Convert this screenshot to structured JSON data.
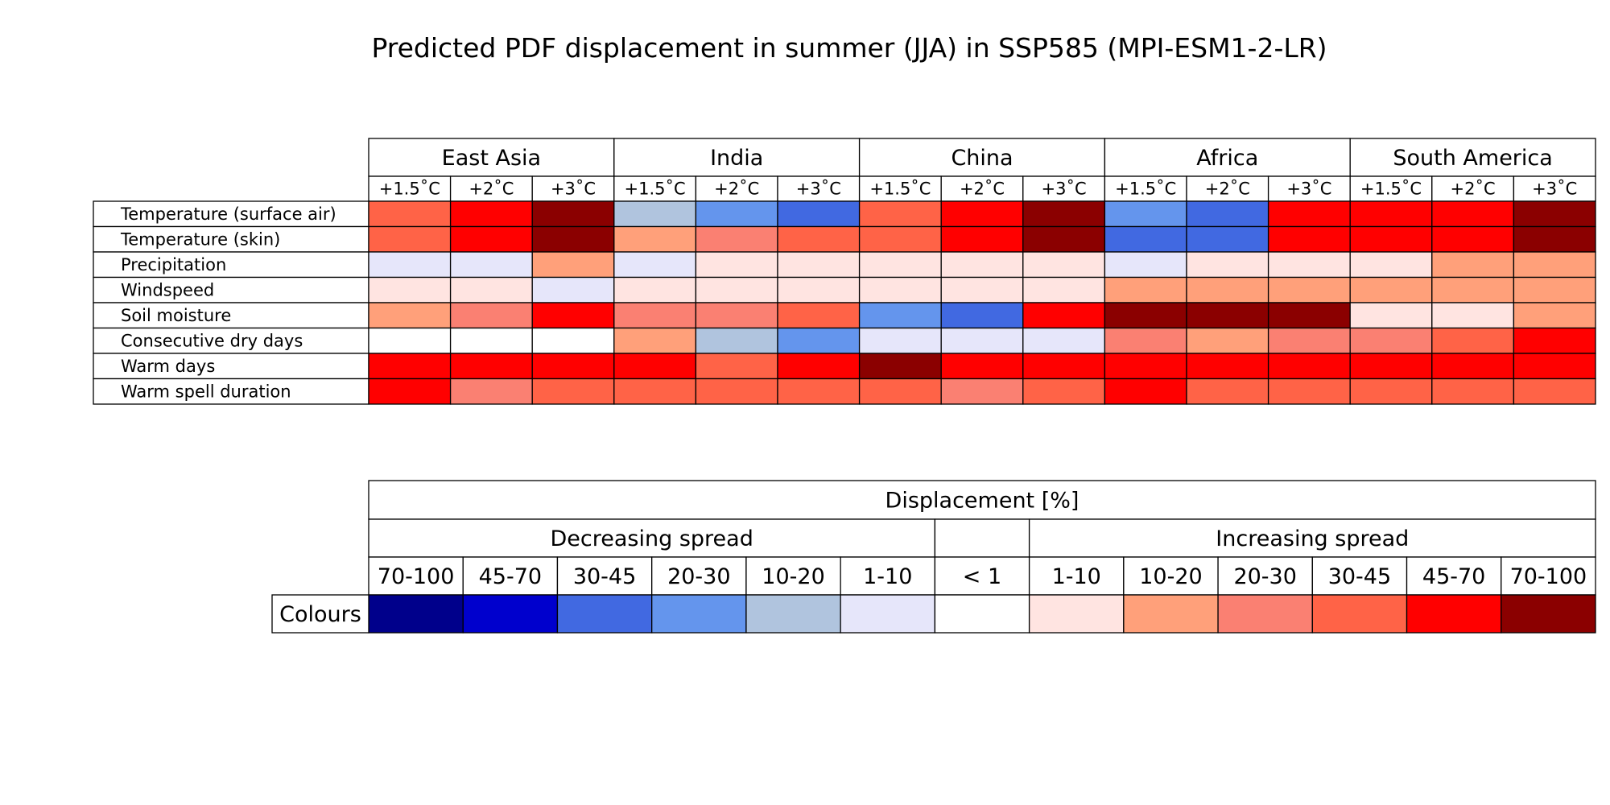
{
  "chart_data": {
    "type": "heatmap",
    "title": "Predicted PDF displacement in summer (JJA) in SSP585 (MPI-ESM1-2-LR)",
    "regions": [
      "East Asia",
      "India",
      "China",
      "Africa",
      "South America"
    ],
    "warming_levels": [
      "+1.5˚C",
      "+2˚C",
      "+3˚C"
    ],
    "variables": [
      "Temperature (surface air)",
      "Temperature (skin)",
      "Precipitation",
      "Windspeed",
      "Soil moisture",
      "Consecutive dry days",
      "Warm days",
      "Warm spell duration"
    ],
    "cells": [
      [
        "#ff6347",
        "#ff0000",
        "#8b0000",
        "#b0c4de",
        "#6495ed",
        "#4169e1",
        "#ff6347",
        "#ff0000",
        "#8b0000",
        "#6495ed",
        "#4169e1",
        "#ff0000",
        "#ff0000",
        "#ff0000",
        "#8b0000"
      ],
      [
        "#ff6347",
        "#ff0000",
        "#8b0000",
        "#ffa07a",
        "#fa8072",
        "#ff6347",
        "#ff6347",
        "#ff0000",
        "#8b0000",
        "#4169e1",
        "#4169e1",
        "#ff0000",
        "#ff0000",
        "#ff0000",
        "#8b0000"
      ],
      [
        "#e6e6fa",
        "#e6e6fa",
        "#ffa07a",
        "#e6e6fa",
        "#ffe4e1",
        "#ffe4e1",
        "#ffe4e1",
        "#ffe4e1",
        "#ffe4e1",
        "#e6e6fa",
        "#ffe4e1",
        "#ffe4e1",
        "#ffe4e1",
        "#ffa07a",
        "#ffa07a"
      ],
      [
        "#ffe4e1",
        "#ffe4e1",
        "#e6e6fa",
        "#ffe4e1",
        "#ffe4e1",
        "#ffe4e1",
        "#ffe4e1",
        "#ffe4e1",
        "#ffe4e1",
        "#ffa07a",
        "#ffa07a",
        "#ffa07a",
        "#ffa07a",
        "#ffa07a",
        "#ffa07a"
      ],
      [
        "#ffa07a",
        "#fa8072",
        "#ff0000",
        "#fa8072",
        "#fa8072",
        "#ff6347",
        "#6495ed",
        "#4169e1",
        "#ff0000",
        "#8b0000",
        "#8b0000",
        "#8b0000",
        "#ffe4e1",
        "#ffe4e1",
        "#ffa07a"
      ],
      [
        "#ffffff",
        "#ffffff",
        "#ffffff",
        "#ffa07a",
        "#b0c4de",
        "#6495ed",
        "#e6e6fa",
        "#e6e6fa",
        "#e6e6fa",
        "#fa8072",
        "#ffa07a",
        "#fa8072",
        "#fa8072",
        "#ff6347",
        "#ff0000"
      ],
      [
        "#ff0000",
        "#ff0000",
        "#ff0000",
        "#ff0000",
        "#ff6347",
        "#ff0000",
        "#8b0000",
        "#ff0000",
        "#ff0000",
        "#ff0000",
        "#ff0000",
        "#ff0000",
        "#ff0000",
        "#ff0000",
        "#ff0000"
      ],
      [
        "#ff0000",
        "#fa8072",
        "#ff6347",
        "#ff6347",
        "#ff6347",
        "#ff6347",
        "#ff6347",
        "#fa8072",
        "#ff6347",
        "#ff0000",
        "#ff6347",
        "#ff6347",
        "#ff6347",
        "#ff6347",
        "#ff6347"
      ]
    ],
    "legend": {
      "title": "Displacement [%]",
      "decreasing_label": "Decreasing spread",
      "increasing_label": "Increasing spread",
      "row_label": "Colours",
      "bins": [
        {
          "label": "70-100",
          "color": "#00008b"
        },
        {
          "label": "45-70",
          "color": "#0000cd"
        },
        {
          "label": "30-45",
          "color": "#4169e1"
        },
        {
          "label": "20-30",
          "color": "#6495ed"
        },
        {
          "label": "10-20",
          "color": "#b0c4de"
        },
        {
          "label": "1-10",
          "color": "#e6e6fa"
        },
        {
          "label": "< 1",
          "color": "#ffffff"
        },
        {
          "label": "1-10",
          "color": "#ffe4e1"
        },
        {
          "label": "10-20",
          "color": "#ffa07a"
        },
        {
          "label": "20-30",
          "color": "#fa8072"
        },
        {
          "label": "30-45",
          "color": "#ff6347"
        },
        {
          "label": "45-70",
          "color": "#ff0000"
        },
        {
          "label": "70-100",
          "color": "#8b0000"
        }
      ]
    }
  }
}
